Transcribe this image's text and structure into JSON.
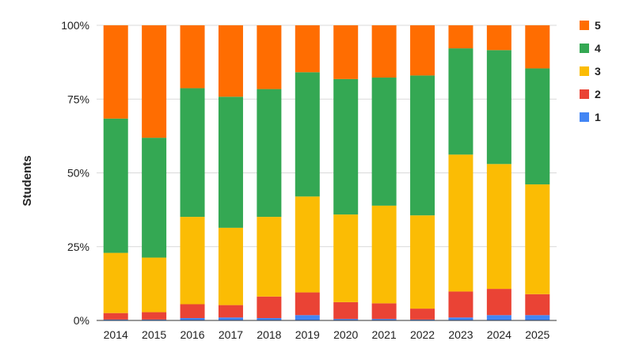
{
  "chart_data": {
    "type": "bar",
    "stacked": "percent",
    "ylabel": "Students",
    "xlabel": "",
    "ylim": [
      0,
      100
    ],
    "yticks": [
      {
        "value": 0,
        "label": "0%"
      },
      {
        "value": 25,
        "label": "25%"
      },
      {
        "value": 50,
        "label": "50%"
      },
      {
        "value": 75,
        "label": "75%"
      },
      {
        "value": 100,
        "label": "100%"
      }
    ],
    "grid": true,
    "legend_position": "right",
    "categories": [
      "2014",
      "2015",
      "2016",
      "2017",
      "2018",
      "2019",
      "2020",
      "2021",
      "2022",
      "2023",
      "2024",
      "2025"
    ],
    "series": [
      {
        "name": "1",
        "color": "#4285F4",
        "values": [
          0.3,
          0.3,
          0.8,
          1.0,
          0.8,
          1.8,
          0.5,
          0.5,
          0.3,
          1.0,
          1.8,
          1.8
        ]
      },
      {
        "name": "2",
        "color": "#EA4335",
        "values": [
          2.2,
          2.5,
          4.7,
          4.2,
          7.3,
          7.7,
          5.7,
          5.3,
          3.7,
          8.8,
          8.9,
          7.1
        ]
      },
      {
        "name": "3",
        "color": "#FBBC04",
        "values": [
          20.4,
          18.5,
          29.6,
          26.2,
          27.0,
          32.5,
          29.7,
          33.1,
          31.6,
          46.4,
          42.3,
          37.2
        ]
      },
      {
        "name": "4",
        "color": "#34A853",
        "values": [
          45.5,
          40.6,
          43.6,
          44.4,
          43.3,
          42.1,
          45.9,
          43.4,
          47.4,
          36.0,
          38.6,
          39.3
        ]
      },
      {
        "name": "5",
        "color": "#FF6D01",
        "values": [
          31.6,
          38.1,
          21.3,
          24.2,
          21.6,
          15.9,
          18.2,
          17.7,
          17.0,
          7.8,
          8.4,
          14.6
        ]
      }
    ]
  }
}
